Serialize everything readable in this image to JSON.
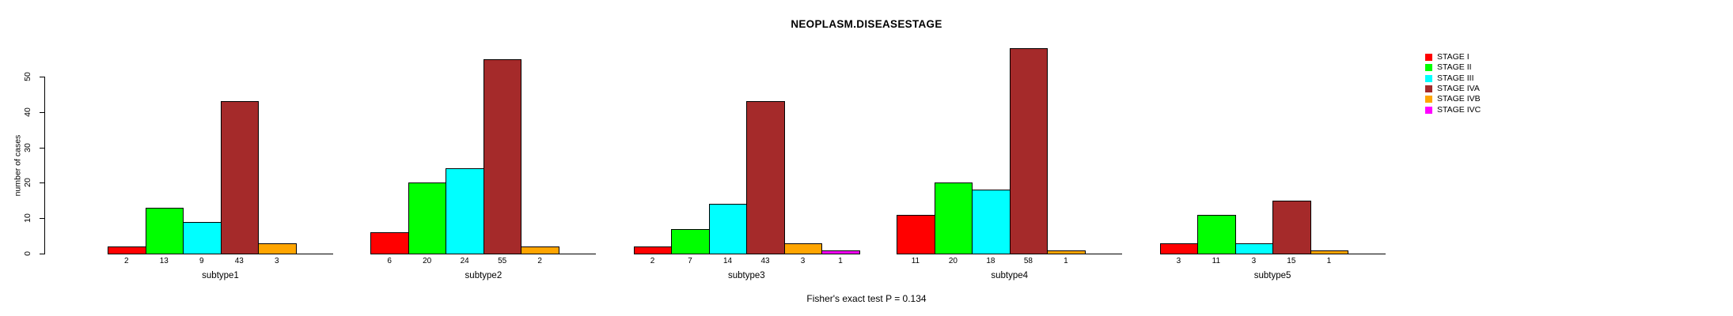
{
  "title": "NEOPLASM.DISEASESTAGE",
  "chart_data": {
    "type": "bar",
    "title": "NEOPLASM.DISEASESTAGE",
    "xlabel": "",
    "ylabel": "number of cases",
    "ylim": [
      0,
      50
    ],
    "yticks": [
      0,
      10,
      20,
      30,
      40,
      50
    ],
    "grid": false,
    "legend_position": "right",
    "bar_value_labels_shown": true,
    "categories": [
      "subtype1",
      "subtype2",
      "subtype3",
      "subtype4",
      "subtype5"
    ],
    "series": [
      {
        "name": "STAGE I",
        "color": "#FF0000",
        "values": [
          2,
          6,
          2,
          11,
          3
        ]
      },
      {
        "name": "STAGE II",
        "color": "#00FF00",
        "values": [
          13,
          20,
          7,
          20,
          11
        ]
      },
      {
        "name": "STAGE III",
        "color": "#00FFFF",
        "values": [
          9,
          24,
          14,
          18,
          3
        ]
      },
      {
        "name": "STAGE IVA",
        "color": "#A52A2A",
        "values": [
          43,
          55,
          43,
          58,
          15
        ]
      },
      {
        "name": "STAGE IVB",
        "color": "#FFA500",
        "values": [
          3,
          2,
          3,
          1,
          1
        ]
      },
      {
        "name": "STAGE IVC",
        "color": "#FF00FF",
        "values": [
          0,
          0,
          1,
          0,
          0
        ]
      }
    ],
    "annotation": "Fisher's exact test P = 0.134"
  }
}
